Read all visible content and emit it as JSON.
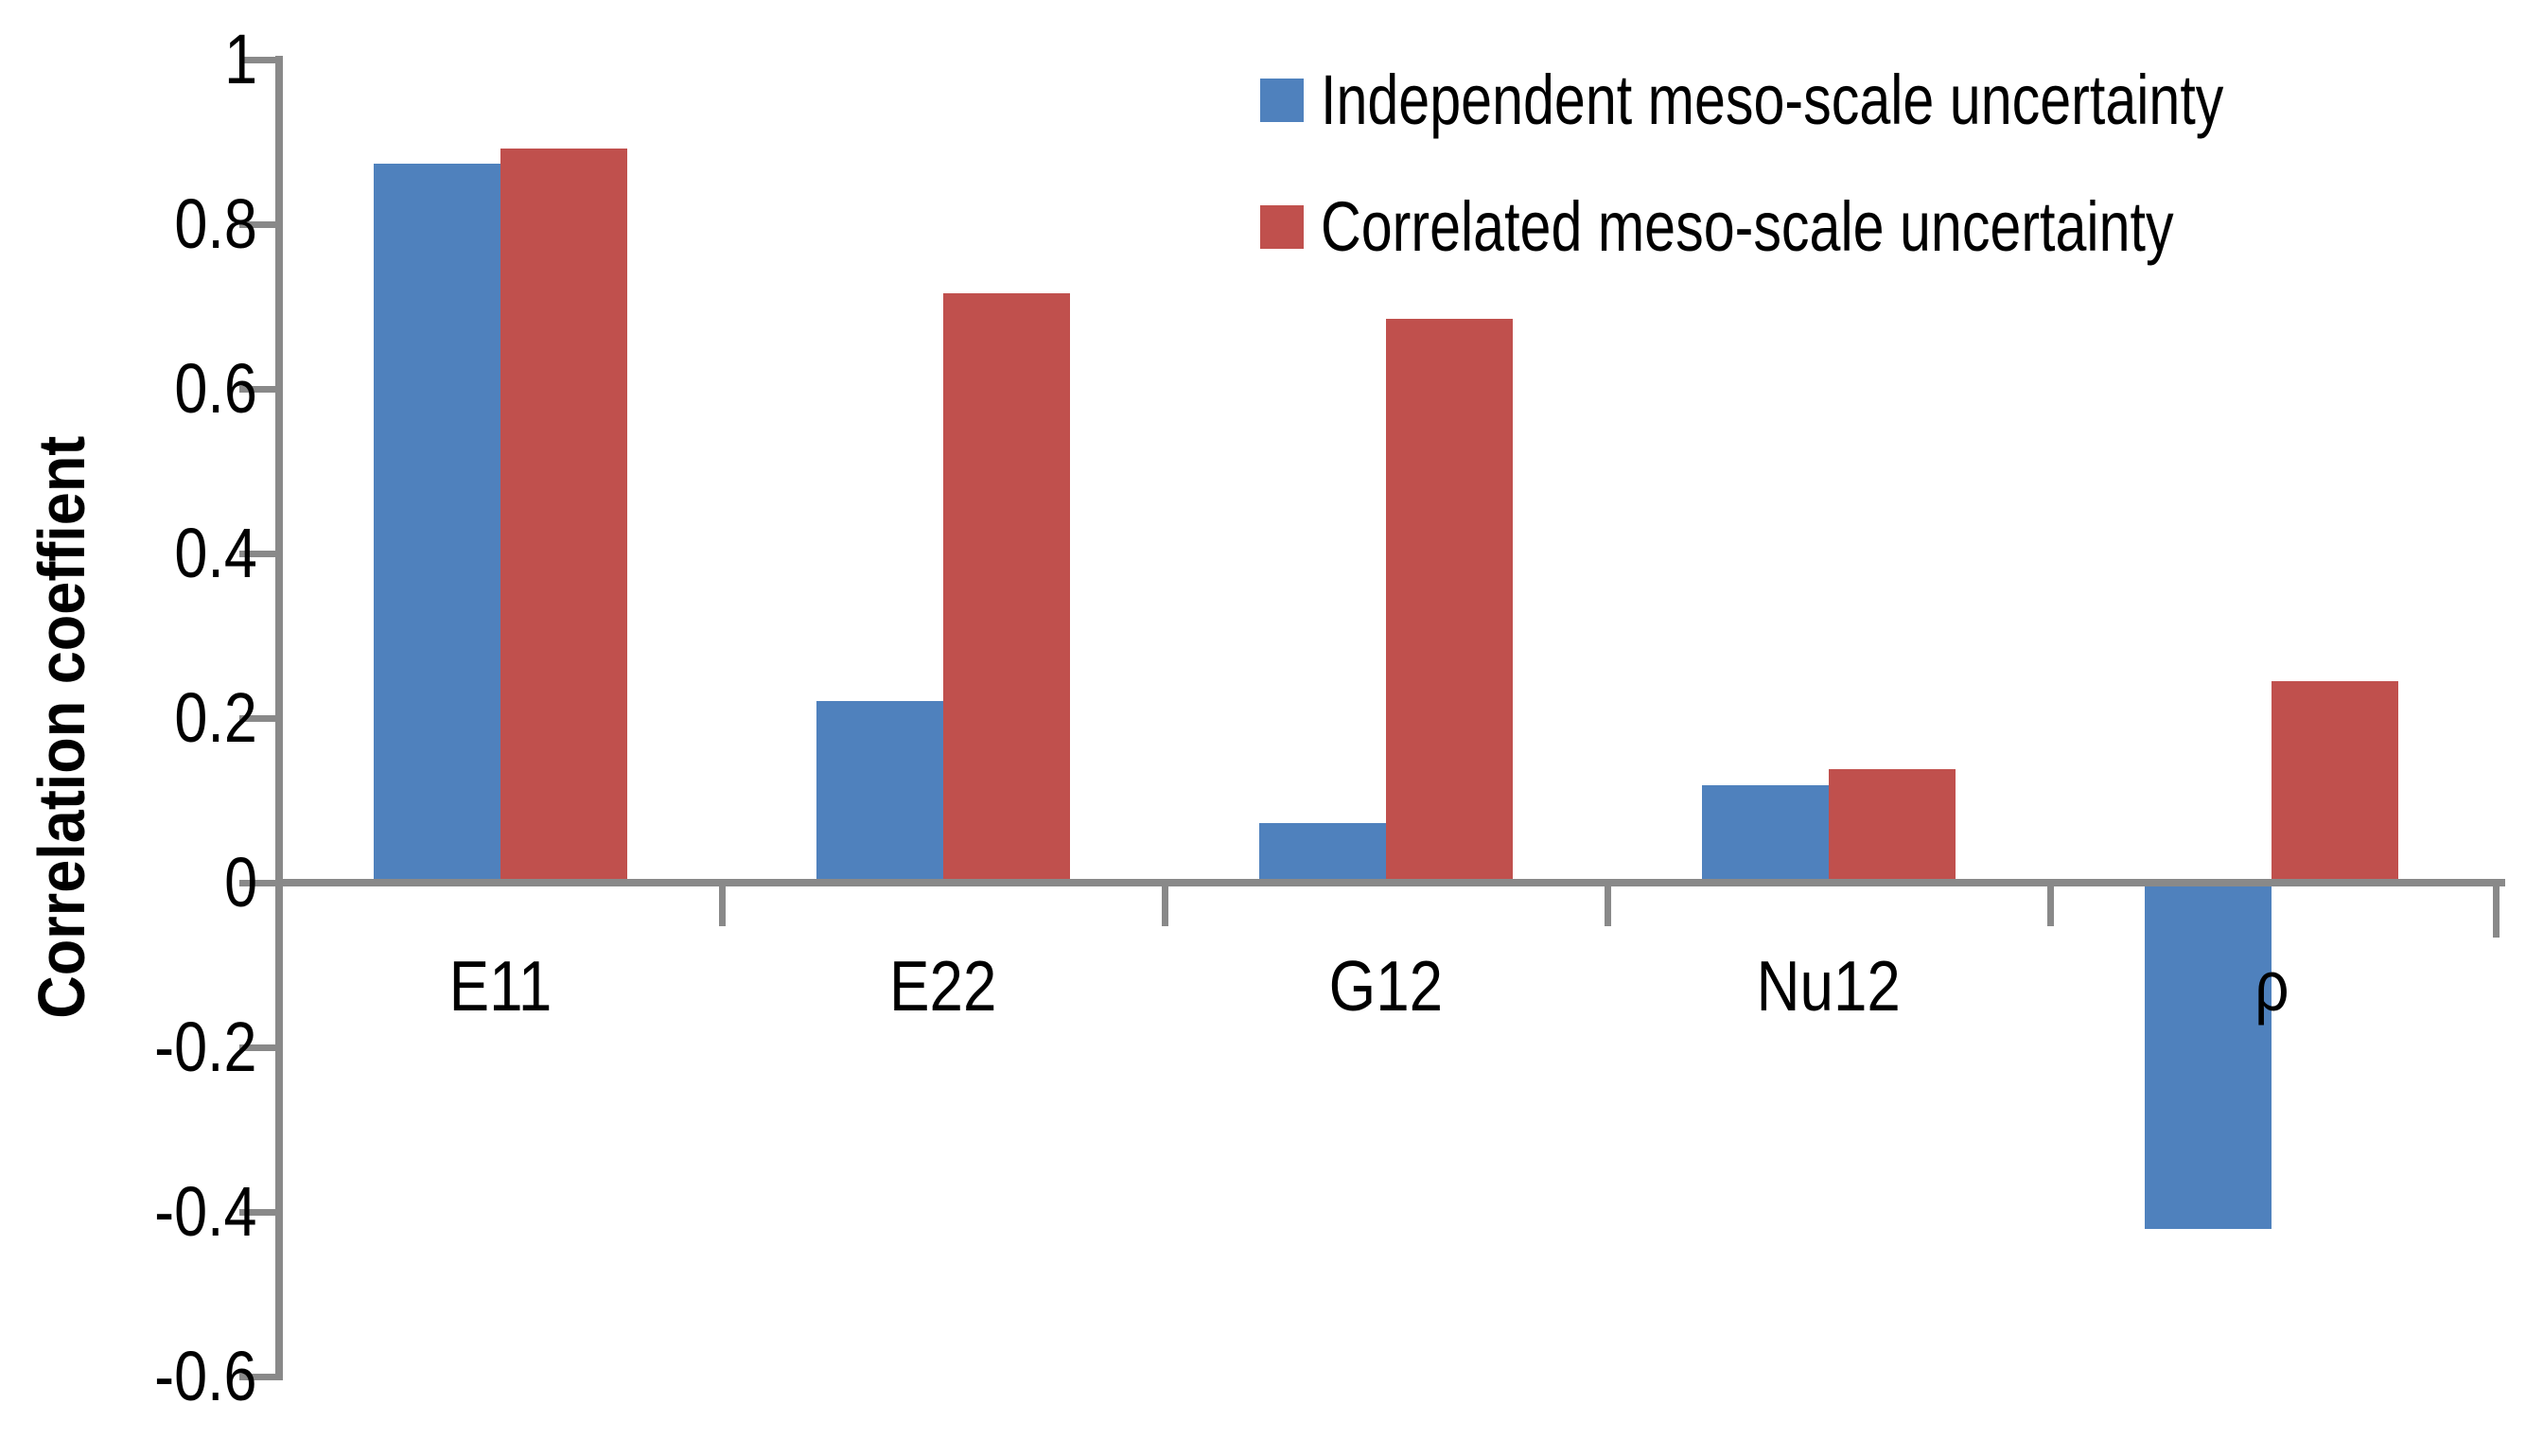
{
  "chart_data": {
    "type": "bar",
    "title": "",
    "xlabel": "",
    "ylabel": "Correlation coeffient",
    "categories": [
      "E11",
      "E22",
      "G12",
      "Nu12",
      "ρ"
    ],
    "series": [
      {
        "name": "Independent meso-scale uncertainty",
        "color": "#4F81BD",
        "values": [
          0.873,
          0.221,
          0.072,
          0.118,
          -0.421
        ]
      },
      {
        "name": "Correlated meso-scale uncertainty",
        "color": "#C0504D",
        "values": [
          0.892,
          0.716,
          0.685,
          0.138,
          0.245
        ]
      }
    ],
    "ylim": [
      -0.6,
      1.0
    ],
    "ytick_step": 0.2,
    "ytick_labels": [
      "1",
      "0.8",
      "0.6",
      "0.4",
      "0.2",
      "0",
      "-0.2",
      "-0.4",
      "-0.6"
    ],
    "grid": false,
    "legend_position": "top-right",
    "axis_color": "#898989",
    "text_color": "#000000",
    "background": "#FFFFFF"
  }
}
